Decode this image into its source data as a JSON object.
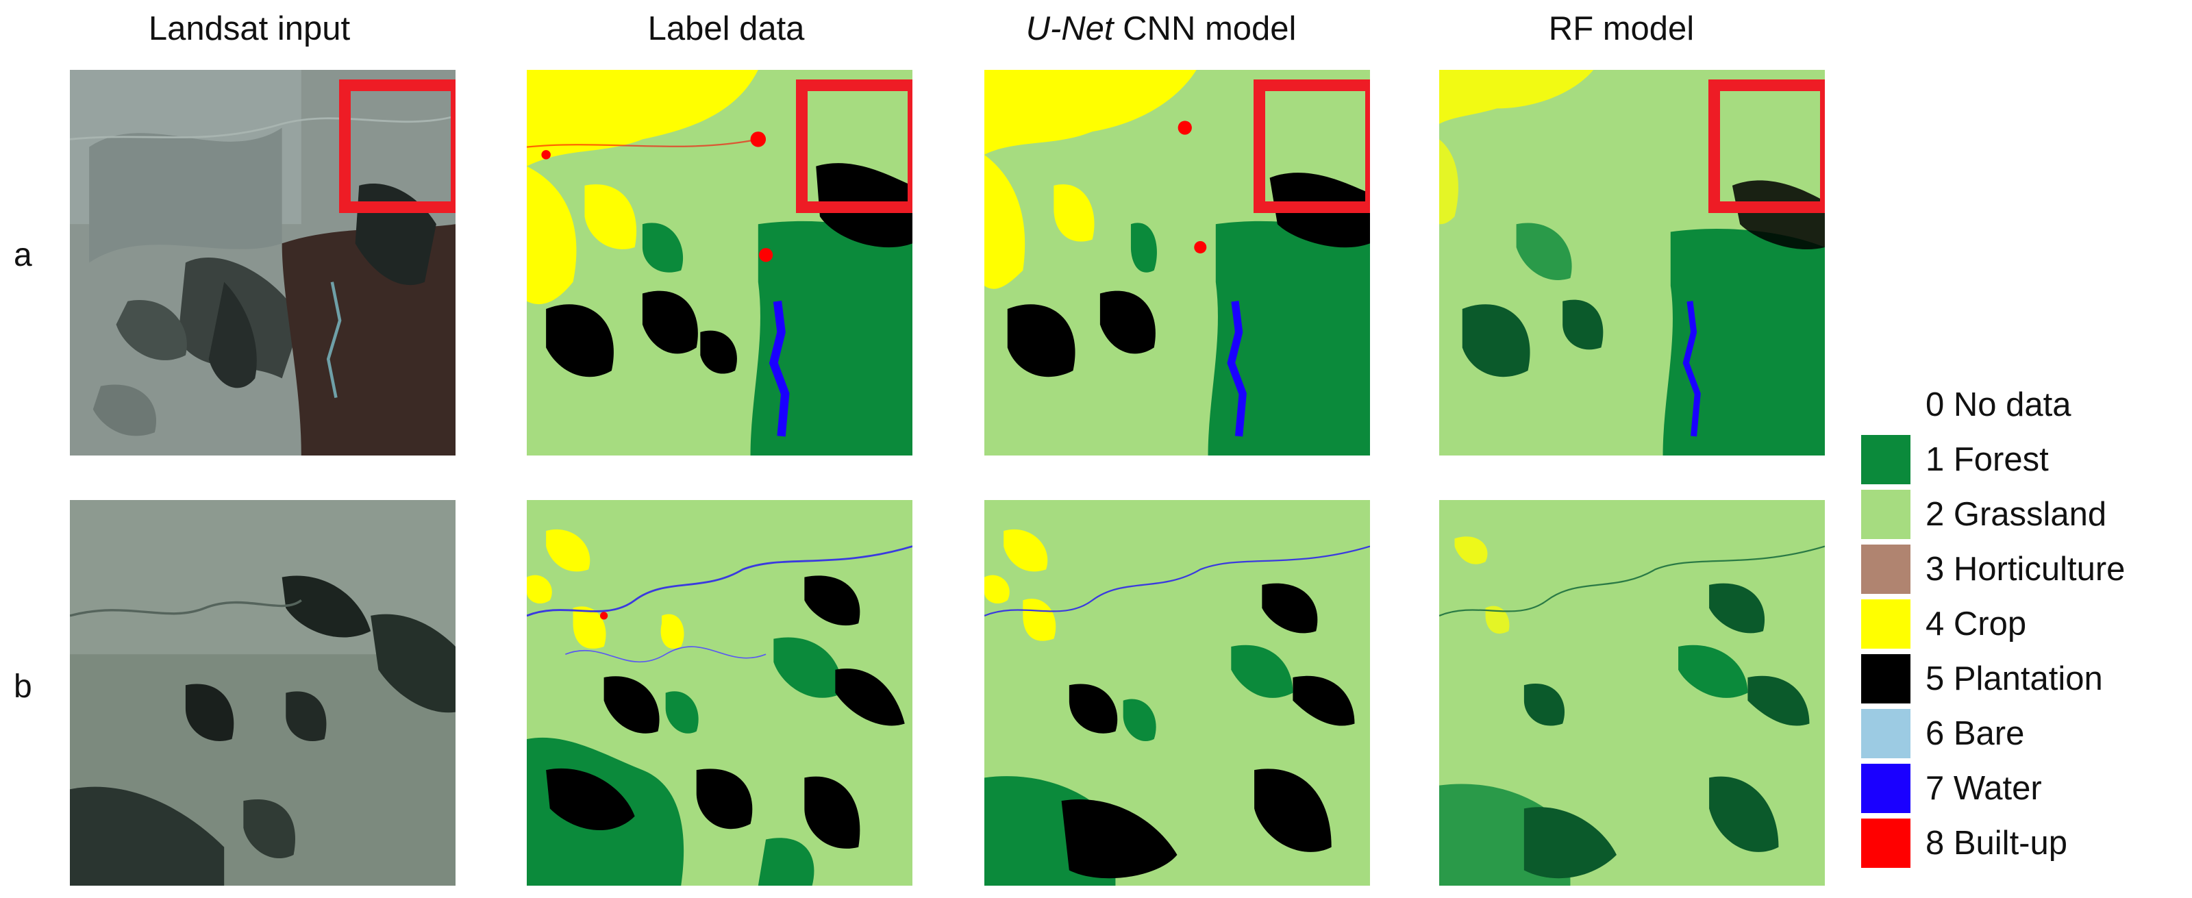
{
  "columns": [
    {
      "title": "Landsat input"
    },
    {
      "title": "Label data"
    },
    {
      "title_em": "U-Net",
      "title_rest": " CNN model"
    },
    {
      "title": "RF model"
    }
  ],
  "rows": [
    {
      "label": "a"
    },
    {
      "label": "b"
    }
  ],
  "legend": [
    {
      "label": "0 No data",
      "color": "#ffffff"
    },
    {
      "label": "1 Forest",
      "color": "#0b8a3b"
    },
    {
      "label": "2 Grassland",
      "color": "#a6dc80"
    },
    {
      "label": "3 Horticulture",
      "color": "#b08470"
    },
    {
      "label": "4 Crop",
      "color": "#ffff00"
    },
    {
      "label": "5 Plantation",
      "color": "#000000"
    },
    {
      "label": "6 Bare",
      "color": "#9ccbe3"
    },
    {
      "label": "7 Water",
      "color": "#1a00ff"
    },
    {
      "label": "8 Built-up",
      "color": "#ff0000"
    }
  ],
  "highlight_color": "#ee1c25"
}
